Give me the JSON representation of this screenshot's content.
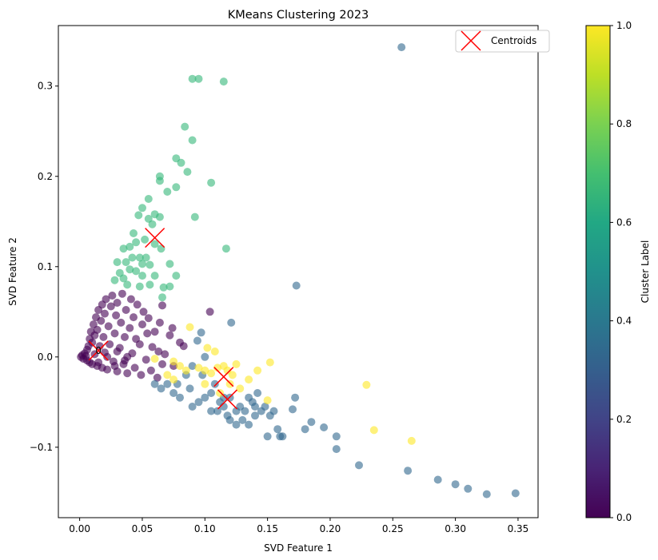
{
  "chart_data": {
    "type": "scatter",
    "title": "KMeans Clustering 2023",
    "xlabel": "SVD Feature 1",
    "ylabel": "SVD Feature 2",
    "xlim": [
      -0.017,
      0.366
    ],
    "ylim": [
      -0.178,
      0.367
    ],
    "xticks": [
      0.0,
      0.05,
      0.1,
      0.15,
      0.2,
      0.25,
      0.3,
      0.35
    ],
    "xtick_labels": [
      "0.00",
      "0.05",
      "0.10",
      "0.15",
      "0.20",
      "0.25",
      "0.30",
      "0.35"
    ],
    "yticks": [
      -0.1,
      0.0,
      0.1,
      0.2,
      0.3
    ],
    "ytick_labels": [
      "−0.1",
      "0.0",
      "0.1",
      "0.2",
      "0.3"
    ],
    "grid": false,
    "legend": {
      "placement": "upper right",
      "entries": [
        "Centroids"
      ]
    },
    "colorbar": {
      "label": "Cluster Label",
      "range": [
        0.0,
        1.0
      ],
      "ticks": [
        0.0,
        0.2,
        0.4,
        0.6,
        0.8,
        1.0
      ],
      "tick_labels": [
        "0.0",
        "0.2",
        "0.4",
        "0.6",
        "0.8",
        "1.0"
      ],
      "colormap": "viridis"
    },
    "series": [
      {
        "cluster": 0,
        "color": "#440154",
        "points": [
          [
            0.001,
            0.0
          ],
          [
            0.002,
            0.002
          ],
          [
            0.003,
            -0.002
          ],
          [
            0.004,
            0.004
          ],
          [
            0.005,
            0.001
          ],
          [
            0.006,
            -0.004
          ],
          [
            0.006,
            0.008
          ],
          [
            0.007,
            0.012
          ],
          [
            0.008,
            -0.006
          ],
          [
            0.008,
            0.02
          ],
          [
            0.009,
            0.028
          ],
          [
            0.01,
            0.016
          ],
          [
            0.01,
            -0.008
          ],
          [
            0.011,
            0.036
          ],
          [
            0.012,
            0.003
          ],
          [
            0.012,
            0.024
          ],
          [
            0.013,
            0.044
          ],
          [
            0.014,
            -0.01
          ],
          [
            0.014,
            0.03
          ],
          [
            0.015,
            0.052
          ],
          [
            0.016,
            0.012
          ],
          [
            0.017,
            0.04
          ],
          [
            0.018,
            -0.012
          ],
          [
            0.018,
            0.058
          ],
          [
            0.019,
            0.022
          ],
          [
            0.02,
            0.005
          ],
          [
            0.02,
            0.048
          ],
          [
            0.021,
            0.064
          ],
          [
            0.022,
            -0.014
          ],
          [
            0.023,
            0.034
          ],
          [
            0.024,
            0.014
          ],
          [
            0.025,
            0.056
          ],
          [
            0.026,
            0.068
          ],
          [
            0.027,
            -0.005
          ],
          [
            0.028,
            0.026
          ],
          [
            0.029,
            0.046
          ],
          [
            0.03,
            -0.016
          ],
          [
            0.03,
            0.06
          ],
          [
            0.032,
            0.01
          ],
          [
            0.033,
            0.038
          ],
          [
            0.034,
            0.07
          ],
          [
            0.035,
            -0.008
          ],
          [
            0.036,
            0.022
          ],
          [
            0.037,
            0.052
          ],
          [
            0.038,
            -0.018
          ],
          [
            0.04,
            0.032
          ],
          [
            0.041,
            0.064
          ],
          [
            0.042,
            0.004
          ],
          [
            0.043,
            0.044
          ],
          [
            0.044,
            -0.012
          ],
          [
            0.045,
            0.02
          ],
          [
            0.046,
            0.058
          ],
          [
            0.048,
            0.014
          ],
          [
            0.049,
            -0.02
          ],
          [
            0.05,
            0.036
          ],
          [
            0.051,
            0.05
          ],
          [
            0.053,
            -0.003
          ],
          [
            0.054,
            0.026
          ],
          [
            0.055,
            0.043
          ],
          [
            0.057,
            -0.015
          ],
          [
            0.058,
            0.011
          ],
          [
            0.06,
            0.028
          ],
          [
            0.062,
            -0.023
          ],
          [
            0.063,
            0.006
          ],
          [
            0.064,
            0.038
          ],
          [
            0.066,
            -0.008
          ],
          [
            0.066,
            0.057
          ],
          [
            0.068,
            0.003
          ],
          [
            0.072,
            0.024
          ],
          [
            0.074,
            0.032
          ],
          [
            0.075,
            -0.01
          ],
          [
            0.08,
            0.016
          ],
          [
            0.083,
            0.012
          ],
          [
            0.104,
            0.05
          ],
          [
            0.015,
            -0.006
          ],
          [
            0.022,
            0.0
          ],
          [
            0.028,
            -0.01
          ],
          [
            0.03,
            0.006
          ],
          [
            0.036,
            -0.004
          ],
          [
            0.038,
            0.0
          ]
        ]
      },
      {
        "cluster": 1,
        "color": "#31688e",
        "points": [
          [
            0.173,
            0.079
          ],
          [
            0.121,
            0.038
          ],
          [
            0.097,
            0.027
          ],
          [
            0.094,
            0.018
          ],
          [
            0.1,
            0.0
          ],
          [
            0.09,
            -0.01
          ],
          [
            0.085,
            -0.02
          ],
          [
            0.07,
            -0.03
          ],
          [
            0.075,
            -0.04
          ],
          [
            0.065,
            -0.035
          ],
          [
            0.06,
            -0.03
          ],
          [
            0.08,
            -0.045
          ],
          [
            0.088,
            -0.035
          ],
          [
            0.095,
            -0.05
          ],
          [
            0.09,
            -0.055
          ],
          [
            0.1,
            -0.045
          ],
          [
            0.105,
            -0.04
          ],
          [
            0.11,
            -0.06
          ],
          [
            0.112,
            -0.05
          ],
          [
            0.115,
            -0.055
          ],
          [
            0.118,
            -0.065
          ],
          [
            0.12,
            -0.045
          ],
          [
            0.125,
            -0.06
          ],
          [
            0.128,
            -0.055
          ],
          [
            0.13,
            -0.07
          ],
          [
            0.132,
            -0.06
          ],
          [
            0.135,
            -0.075
          ],
          [
            0.138,
            -0.05
          ],
          [
            0.14,
            -0.065
          ],
          [
            0.142,
            -0.04
          ],
          [
            0.145,
            -0.06
          ],
          [
            0.148,
            -0.055
          ],
          [
            0.15,
            -0.088
          ],
          [
            0.152,
            -0.065
          ],
          [
            0.155,
            -0.06
          ],
          [
            0.158,
            -0.08
          ],
          [
            0.16,
            -0.088
          ],
          [
            0.162,
            -0.088
          ],
          [
            0.17,
            -0.058
          ],
          [
            0.172,
            -0.045
          ],
          [
            0.18,
            -0.08
          ],
          [
            0.185,
            -0.072
          ],
          [
            0.195,
            -0.078
          ],
          [
            0.205,
            -0.088
          ],
          [
            0.205,
            -0.102
          ],
          [
            0.223,
            -0.12
          ],
          [
            0.262,
            -0.126
          ],
          [
            0.286,
            -0.136
          ],
          [
            0.3,
            -0.141
          ],
          [
            0.31,
            -0.146
          ],
          [
            0.325,
            -0.152
          ],
          [
            0.348,
            -0.151
          ],
          [
            0.257,
            0.343
          ],
          [
            0.105,
            -0.06
          ],
          [
            0.125,
            -0.075
          ],
          [
            0.135,
            -0.045
          ],
          [
            0.14,
            -0.055
          ],
          [
            0.078,
            -0.03
          ],
          [
            0.098,
            -0.02
          ],
          [
            0.108,
            -0.03
          ],
          [
            0.115,
            -0.045
          ],
          [
            0.12,
            -0.07
          ]
        ]
      },
      {
        "cluster": 2,
        "color": "#35b779",
        "points": [
          [
            0.095,
            0.308
          ],
          [
            0.115,
            0.305
          ],
          [
            0.09,
            0.308
          ],
          [
            0.084,
            0.255
          ],
          [
            0.09,
            0.24
          ],
          [
            0.077,
            0.22
          ],
          [
            0.081,
            0.215
          ],
          [
            0.086,
            0.205
          ],
          [
            0.064,
            0.2
          ],
          [
            0.064,
            0.195
          ],
          [
            0.105,
            0.193
          ],
          [
            0.077,
            0.188
          ],
          [
            0.07,
            0.183
          ],
          [
            0.055,
            0.175
          ],
          [
            0.05,
            0.165
          ],
          [
            0.047,
            0.157
          ],
          [
            0.055,
            0.153
          ],
          [
            0.06,
            0.158
          ],
          [
            0.064,
            0.155
          ],
          [
            0.092,
            0.155
          ],
          [
            0.058,
            0.147
          ],
          [
            0.043,
            0.137
          ],
          [
            0.052,
            0.13
          ],
          [
            0.045,
            0.127
          ],
          [
            0.06,
            0.125
          ],
          [
            0.035,
            0.12
          ],
          [
            0.04,
            0.122
          ],
          [
            0.065,
            0.12
          ],
          [
            0.117,
            0.12
          ],
          [
            0.048,
            0.11
          ],
          [
            0.042,
            0.11
          ],
          [
            0.053,
            0.11
          ],
          [
            0.037,
            0.105
          ],
          [
            0.03,
            0.105
          ],
          [
            0.05,
            0.103
          ],
          [
            0.056,
            0.102
          ],
          [
            0.072,
            0.103
          ],
          [
            0.04,
            0.097
          ],
          [
            0.045,
            0.095
          ],
          [
            0.05,
            0.09
          ],
          [
            0.032,
            0.093
          ],
          [
            0.028,
            0.085
          ],
          [
            0.035,
            0.087
          ],
          [
            0.06,
            0.09
          ],
          [
            0.077,
            0.09
          ],
          [
            0.038,
            0.08
          ],
          [
            0.048,
            0.078
          ],
          [
            0.056,
            0.08
          ],
          [
            0.067,
            0.077
          ],
          [
            0.072,
            0.078
          ],
          [
            0.066,
            0.066
          ]
        ]
      },
      {
        "cluster": 3,
        "color": "#fde725",
        "points": [
          [
            0.088,
            0.033
          ],
          [
            0.102,
            0.01
          ],
          [
            0.108,
            0.006
          ],
          [
            0.06,
            -0.002
          ],
          [
            0.075,
            -0.005
          ],
          [
            0.08,
            -0.01
          ],
          [
            0.085,
            -0.015
          ],
          [
            0.095,
            -0.012
          ],
          [
            0.1,
            -0.015
          ],
          [
            0.105,
            -0.018
          ],
          [
            0.11,
            -0.012
          ],
          [
            0.115,
            -0.01
          ],
          [
            0.118,
            -0.015
          ],
          [
            0.122,
            -0.02
          ],
          [
            0.125,
            -0.008
          ],
          [
            0.135,
            -0.025
          ],
          [
            0.142,
            -0.015
          ],
          [
            0.15,
            -0.048
          ],
          [
            0.152,
            -0.006
          ],
          [
            0.229,
            -0.031
          ],
          [
            0.235,
            -0.081
          ],
          [
            0.265,
            -0.093
          ],
          [
            0.07,
            -0.02
          ],
          [
            0.075,
            -0.025
          ],
          [
            0.1,
            -0.03
          ],
          [
            0.12,
            -0.03
          ],
          [
            0.128,
            -0.035
          ],
          [
            0.112,
            -0.04
          ]
        ]
      }
    ],
    "centroids": {
      "label": "Centroids",
      "color": "#ff0000",
      "points": [
        [
          0.015,
          0.007
        ],
        [
          0.06,
          0.132
        ],
        [
          0.115,
          -0.022
        ],
        [
          0.118,
          -0.047
        ]
      ]
    },
    "annotations": [
      {
        "text": "0",
        "x": 0.015,
        "y": 0.007
      }
    ]
  }
}
